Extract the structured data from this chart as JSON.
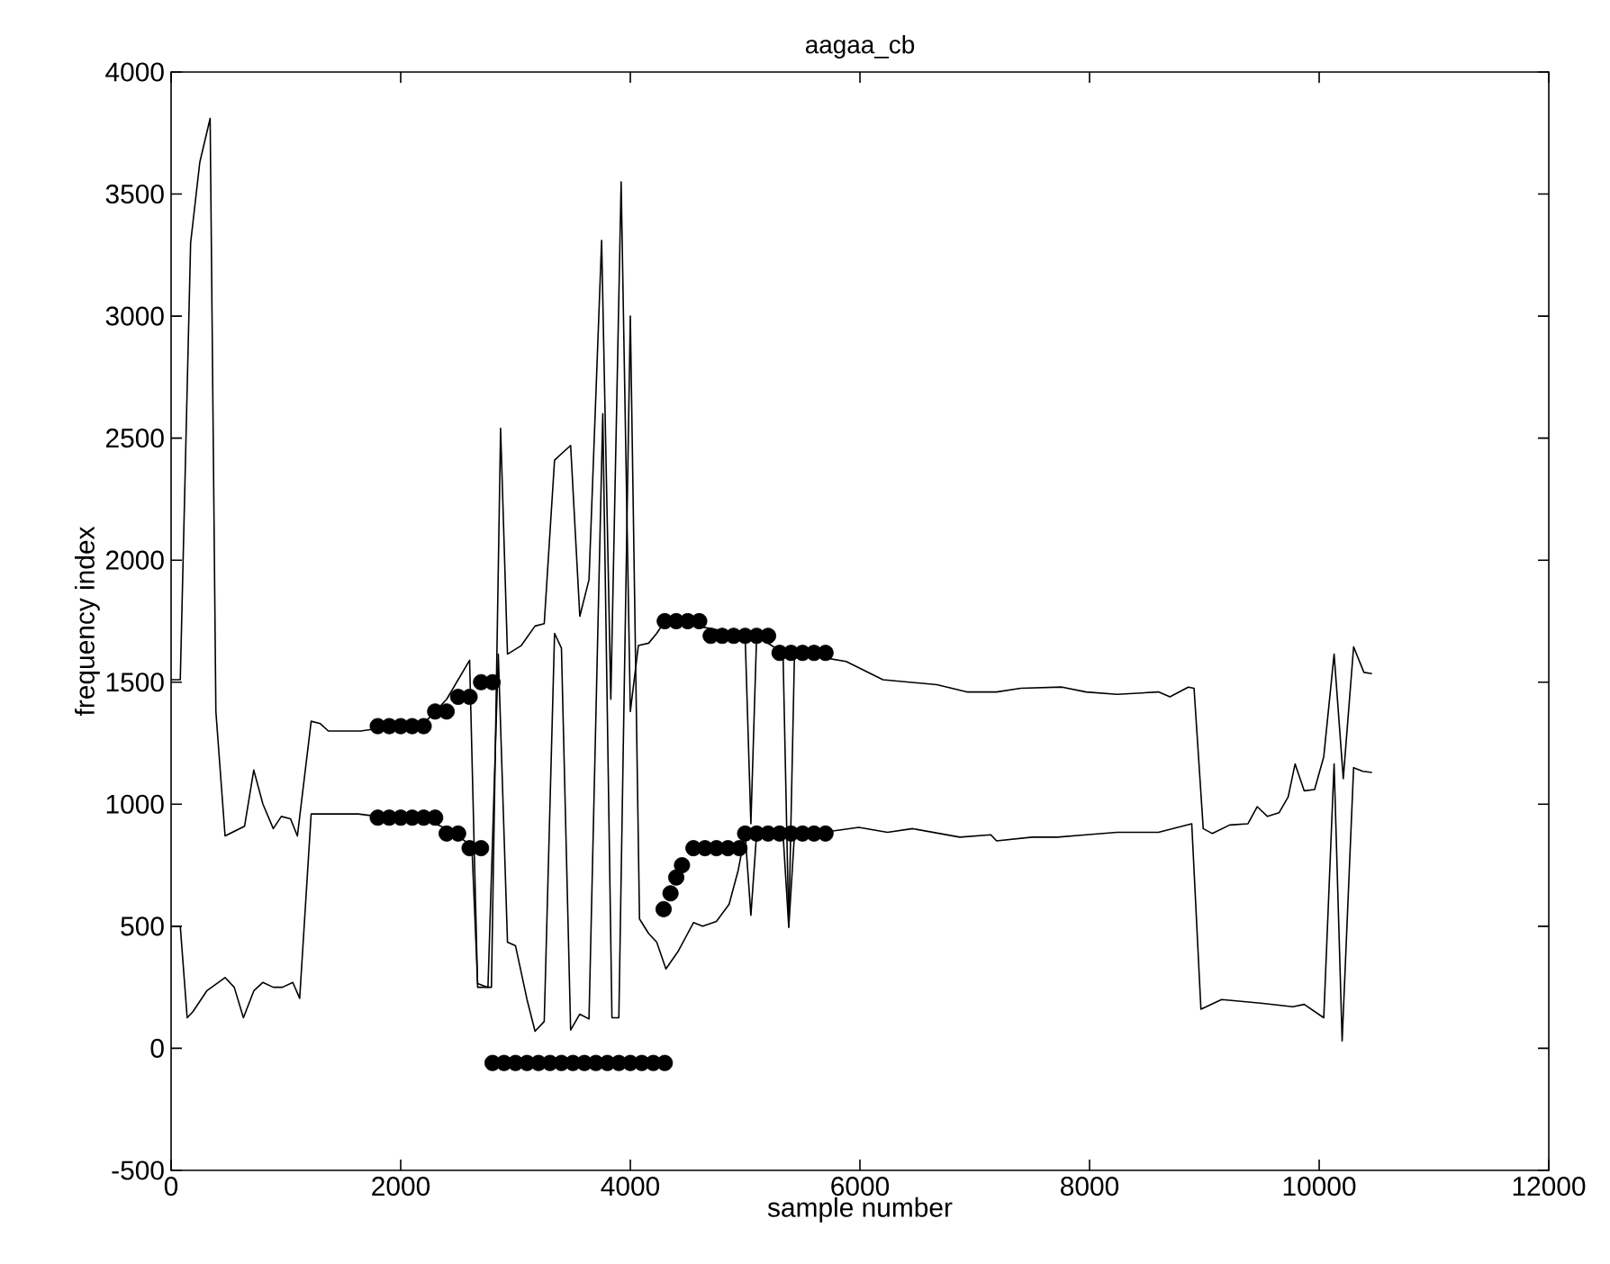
{
  "chart_data": {
    "type": "line",
    "title": "aagaa_cb",
    "xlabel": "sample number",
    "ylabel": "frequency index",
    "xlim": [
      0,
      12000
    ],
    "ylim": [
      -500,
      4000
    ],
    "xticks": [
      0,
      2000,
      4000,
      6000,
      8000,
      10000,
      12000
    ],
    "yticks": [
      -500,
      0,
      500,
      1000,
      1500,
      2000,
      2500,
      3000,
      3500,
      4000
    ],
    "line_style": "solid",
    "series": [
      {
        "type": "line",
        "color": "#000000",
        "marker": "none",
        "x": [
          0,
          80,
          170,
          250,
          340,
          390,
          470,
          640,
          720,
          800,
          890,
          960,
          1040,
          1100,
          1220,
          1300,
          1370,
          1650,
          1800,
          2200,
          2400,
          2600,
          2670,
          2790,
          2870,
          2930,
          3050,
          3170,
          3250,
          3340,
          3480,
          3560,
          3640,
          3750,
          3830,
          3920,
          4000,
          4070,
          4160,
          4230,
          4300,
          4700,
          5000,
          5050,
          5100,
          5330,
          5380,
          5430,
          5690,
          5880,
          6200,
          6670,
          6930,
          7190,
          7400,
          7760,
          7970,
          8240,
          8600,
          8700,
          8860,
          8910,
          8990,
          9070,
          9220,
          9380,
          9460,
          9550,
          9650,
          9730,
          9790,
          9870,
          9960,
          10040,
          10130,
          10210,
          10300,
          10390,
          10460
        ],
        "values": [
          1510,
          1510,
          3300,
          3630,
          3810,
          1380,
          870,
          910,
          1140,
          1000,
          900,
          950,
          940,
          870,
          1340,
          1330,
          1300,
          1300,
          1310,
          1330,
          1430,
          1590,
          250,
          250,
          2540,
          1615,
          1650,
          1730,
          1740,
          2410,
          2470,
          1770,
          1920,
          3310,
          1430,
          3550,
          1380,
          1650,
          1660,
          1700,
          1750,
          1720,
          1690,
          920,
          1690,
          1620,
          500,
          1620,
          1600,
          1585,
          1510,
          1490,
          1460,
          1460,
          1475,
          1480,
          1460,
          1450,
          1460,
          1440,
          1480,
          1475,
          900,
          880,
          915,
          920,
          990,
          950,
          965,
          1030,
          1165,
          1055,
          1060,
          1195,
          1615,
          1105,
          1645,
          1540,
          1535
        ]
      },
      {
        "type": "line",
        "color": "#000000",
        "marker": "none",
        "x": [
          0,
          80,
          140,
          190,
          310,
          470,
          550,
          630,
          720,
          800,
          890,
          970,
          1060,
          1120,
          1220,
          1350,
          1630,
          1800,
          2200,
          2400,
          2620,
          2670,
          2760,
          2850,
          2930,
          3000,
          3100,
          3170,
          3250,
          3340,
          3400,
          3480,
          3560,
          3640,
          3760,
          3840,
          3900,
          4000,
          4080,
          4160,
          4230,
          4310,
          4420,
          4550,
          4630,
          4750,
          4860,
          4940,
          5000,
          5050,
          5100,
          5330,
          5380,
          5430,
          5680,
          5990,
          6240,
          6460,
          6870,
          7140,
          7190,
          7500,
          7720,
          7970,
          8240,
          8600,
          8890,
          8970,
          9150,
          9490,
          9770,
          9870,
          10040,
          10130,
          10200,
          10300,
          10380,
          10460
        ],
        "values": [
          500,
          500,
          125,
          150,
          235,
          290,
          250,
          125,
          235,
          270,
          250,
          250,
          270,
          205,
          960,
          960,
          960,
          950,
          940,
          900,
          830,
          265,
          250,
          1615,
          435,
          420,
          200,
          70,
          110,
          1700,
          1640,
          75,
          140,
          120,
          2600,
          125,
          125,
          3000,
          530,
          470,
          435,
          325,
          400,
          515,
          500,
          520,
          590,
          730,
          880,
          545,
          880,
          880,
          495,
          880,
          885,
          905,
          885,
          900,
          865,
          875,
          850,
          865,
          865,
          875,
          885,
          885,
          920,
          160,
          200,
          185,
          170,
          180,
          125,
          1165,
          30,
          1150,
          1135,
          1130
        ]
      },
      {
        "type": "scatter",
        "color": "#000000",
        "marker": "circle",
        "x": [
          1800,
          1900,
          2000,
          2100,
          2200,
          2300,
          2400,
          2500,
          2600,
          2700,
          2800,
          1800,
          1900,
          2000,
          2100,
          2200,
          2300,
          2400,
          2500,
          2600,
          2700,
          2800,
          2900,
          3000,
          3100,
          3200,
          3300,
          3400,
          3500,
          3600,
          3700,
          3800,
          3900,
          4000,
          4100,
          4200,
          4300,
          4300,
          4400,
          4500,
          4600,
          4700,
          4800,
          4900,
          5000,
          5100,
          5200,
          5300,
          5400,
          5500,
          5600,
          5700,
          4450,
          4550,
          4650,
          4750,
          4850,
          4950,
          5000,
          5100,
          5200,
          5300,
          5400,
          5500,
          5600,
          5700
        ],
        "values": [
          1320,
          1320,
          1320,
          1320,
          1320,
          1380,
          1380,
          1440,
          1440,
          1500,
          1500,
          945,
          945,
          945,
          945,
          945,
          945,
          880,
          880,
          820,
          820,
          -60,
          -60,
          -60,
          -60,
          -60,
          -60,
          -60,
          -60,
          -60,
          -60,
          -60,
          -60,
          -60,
          -60,
          -60,
          -60,
          1750,
          1750,
          1750,
          1750,
          1690,
          1690,
          1690,
          1690,
          1690,
          1690,
          1620,
          1620,
          1620,
          1620,
          1620,
          750,
          820,
          820,
          820,
          820,
          820,
          880,
          880,
          880,
          880,
          880,
          880,
          880,
          880
        ]
      },
      {
        "type": "scatter",
        "color": "#000000",
        "marker": "circle",
        "x": [
          4290,
          4350,
          4400
        ],
        "values": [
          570,
          635,
          700
        ]
      }
    ]
  }
}
